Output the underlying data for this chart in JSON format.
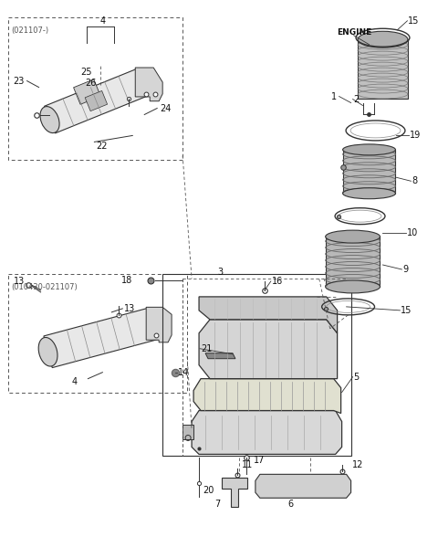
{
  "background_color": "#ffffff",
  "line_color": "#333333",
  "fig_width": 4.8,
  "fig_height": 5.88,
  "dpi": 100
}
